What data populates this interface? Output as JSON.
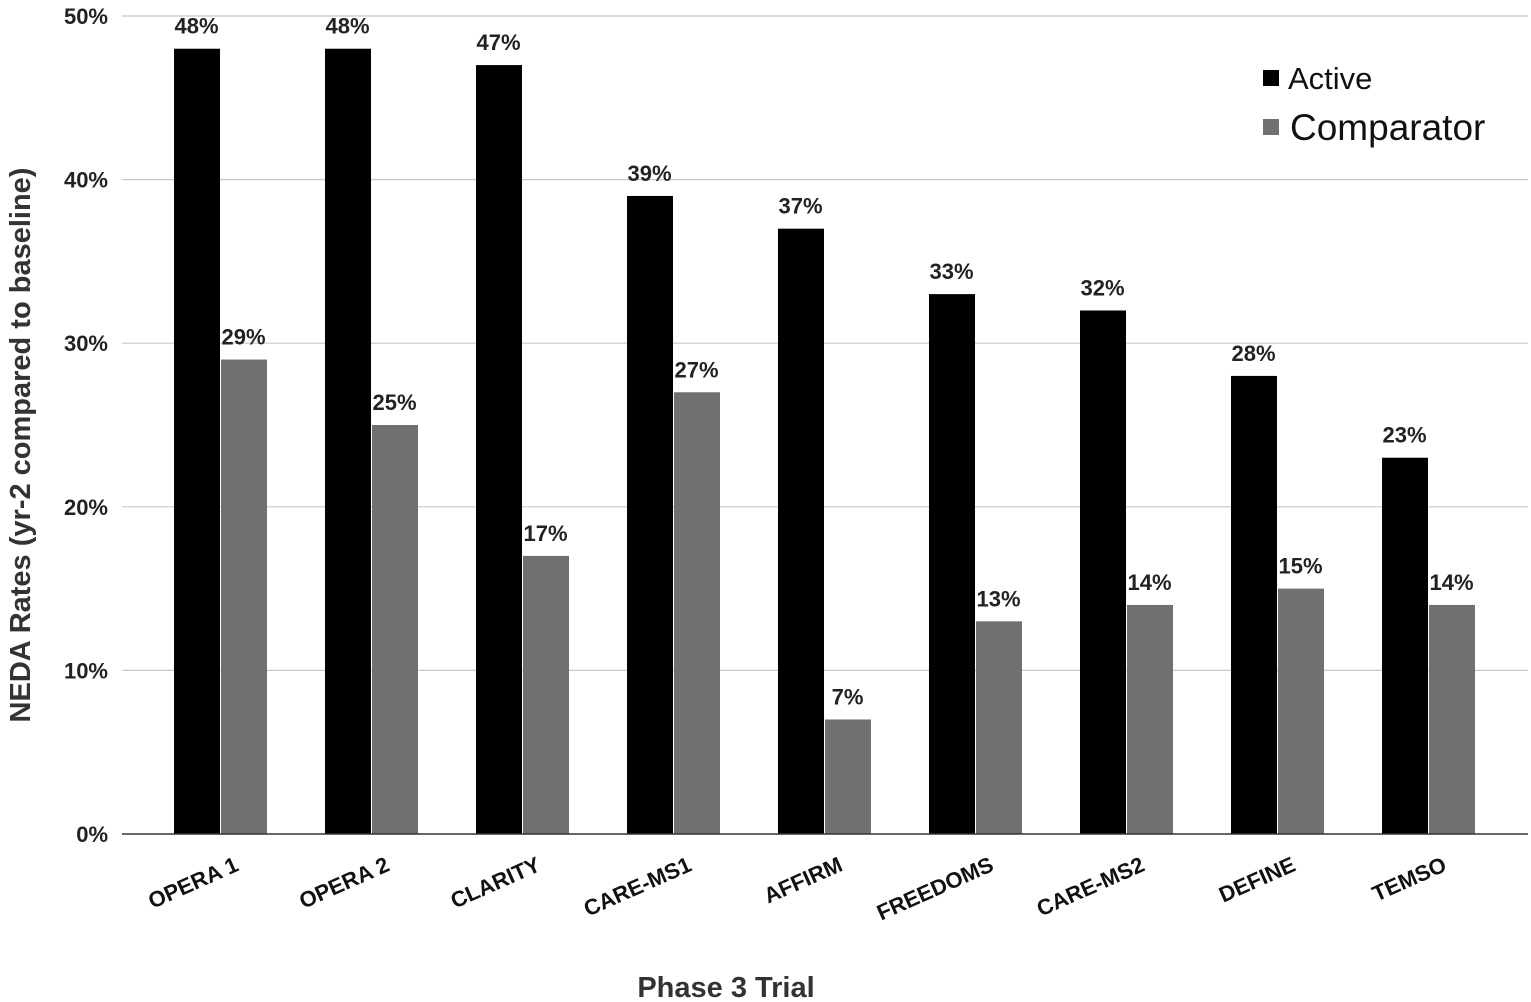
{
  "chart_data": {
    "type": "bar",
    "xlabel": "Phase 3 Trial",
    "ylabel": "NEDA Rates (yr-2 compared to baseline)",
    "ylim": [
      0,
      50
    ],
    "yticks": [
      "0%",
      "10%",
      "20%",
      "30%",
      "40%",
      "50%"
    ],
    "grid": true,
    "legend_position": "top-right",
    "categories": [
      "OPERA 1",
      "OPERA 2",
      "CLARITY",
      "CARE-MS1",
      "AFFIRM",
      "FREEDOMS",
      "CARE-MS2",
      "DEFINE",
      "TEMSO"
    ],
    "series": [
      {
        "name": "Active",
        "color": "#000000",
        "values": [
          48,
          48,
          47,
          39,
          37,
          33,
          32,
          28,
          23
        ],
        "labels": [
          "48%",
          "48%",
          "47%",
          "39%",
          "37%",
          "33%",
          "32%",
          "28%",
          "23%"
        ]
      },
      {
        "name": "Comparator",
        "color": "#707070",
        "values": [
          29,
          25,
          17,
          27,
          7,
          13,
          14,
          15,
          14
        ],
        "labels": [
          "29%",
          "25%",
          "17%",
          "27%",
          "7%",
          "13%",
          "14%",
          "15%",
          "14%"
        ]
      }
    ]
  }
}
